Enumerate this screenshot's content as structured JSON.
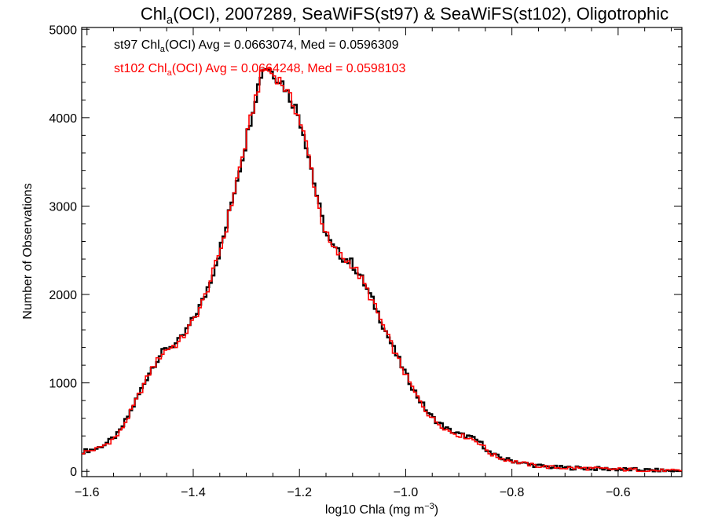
{
  "chart_data": {
    "type": "line",
    "title": {
      "prefix": "Chl",
      "sub": "a",
      "rest": "(OCI), 2007289, SeaWiFS(st97) & SeaWiFS(st102), Oligotrophic"
    },
    "xlabel": {
      "main": "log10 Chla (mg m",
      "sup": "−3",
      "close": ")"
    },
    "ylabel": "Number of Observations",
    "xlim": [
      -1.61,
      -0.48
    ],
    "ylim": [
      -60,
      5020
    ],
    "xticks": [
      {
        "value": -1.6,
        "label": "−1.6"
      },
      {
        "value": -1.4,
        "label": "−1.4"
      },
      {
        "value": -1.2,
        "label": "−1.2"
      },
      {
        "value": -1.0,
        "label": "−1.0"
      },
      {
        "value": -0.8,
        "label": "−0.8"
      },
      {
        "value": -0.6,
        "label": "−0.6"
      }
    ],
    "yticks": [
      {
        "value": 0,
        "label": "0"
      },
      {
        "value": 1000,
        "label": "1000"
      },
      {
        "value": 2000,
        "label": "2000"
      },
      {
        "value": 3000,
        "label": "3000"
      },
      {
        "value": 4000,
        "label": "4000"
      },
      {
        "value": 5000,
        "label": "5000"
      }
    ],
    "x_minor_step": 0.05,
    "y_minor_step": 200,
    "legend": [
      {
        "name": "st97",
        "color": "#000000",
        "prefix": "st97 Chl",
        "sub": "a",
        "rest": "(OCI) Avg = 0.0663074, Med = 0.0596309"
      },
      {
        "name": "st102",
        "color": "#ff0000",
        "prefix": "st102 Chl",
        "sub": "a",
        "rest": "(OCI) Avg = 0.0664248, Med = 0.0598103"
      }
    ],
    "series": [
      {
        "name": "st97",
        "color": "#000000",
        "step": 0.005,
        "x_start": -1.61,
        "profile_x": [
          -1.61,
          -1.58,
          -1.56,
          -1.54,
          -1.52,
          -1.5,
          -1.48,
          -1.46,
          -1.45,
          -1.44,
          -1.43,
          -1.42,
          -1.4,
          -1.38,
          -1.36,
          -1.34,
          -1.32,
          -1.3,
          -1.29,
          -1.28,
          -1.27,
          -1.26,
          -1.25,
          -1.24,
          -1.23,
          -1.22,
          -1.21,
          -1.2,
          -1.19,
          -1.18,
          -1.17,
          -1.16,
          -1.15,
          -1.14,
          -1.12,
          -1.1,
          -1.08,
          -1.06,
          -1.04,
          -1.02,
          -1.0,
          -0.98,
          -0.96,
          -0.95,
          -0.94,
          -0.92,
          -0.9,
          -0.88,
          -0.86,
          -0.84,
          -0.82,
          -0.8,
          -0.78,
          -0.76,
          -0.74,
          -0.72,
          -0.7,
          -0.68,
          -0.66,
          -0.64,
          -0.62,
          -0.6,
          -0.58,
          -0.56,
          -0.54,
          -0.52,
          -0.5,
          -0.48
        ],
        "profile_y": [
          220,
          260,
          330,
          430,
          650,
          900,
          1150,
          1330,
          1390,
          1420,
          1450,
          1520,
          1720,
          1950,
          2300,
          2700,
          3250,
          3750,
          4050,
          4300,
          4550,
          4580,
          4500,
          4450,
          4380,
          4250,
          4150,
          4000,
          3780,
          3500,
          3200,
          2900,
          2700,
          2550,
          2430,
          2350,
          2150,
          1900,
          1620,
          1350,
          1100,
          870,
          680,
          610,
          560,
          470,
          420,
          390,
          330,
          200,
          150,
          120,
          95,
          70,
          55,
          45,
          40,
          38,
          35,
          30,
          26,
          23,
          20,
          16,
          12,
          8,
          5,
          3
        ]
      },
      {
        "name": "st102",
        "color": "#ff0000",
        "step": 0.005,
        "x_start": -1.61,
        "profile_x": [
          -1.61,
          -1.58,
          -1.56,
          -1.54,
          -1.52,
          -1.5,
          -1.48,
          -1.46,
          -1.45,
          -1.44,
          -1.43,
          -1.42,
          -1.4,
          -1.38,
          -1.36,
          -1.34,
          -1.32,
          -1.3,
          -1.29,
          -1.28,
          -1.27,
          -1.26,
          -1.25,
          -1.24,
          -1.23,
          -1.22,
          -1.21,
          -1.2,
          -1.19,
          -1.18,
          -1.17,
          -1.16,
          -1.15,
          -1.14,
          -1.12,
          -1.1,
          -1.08,
          -1.06,
          -1.04,
          -1.02,
          -1.0,
          -0.98,
          -0.96,
          -0.95,
          -0.94,
          -0.92,
          -0.9,
          -0.88,
          -0.86,
          -0.84,
          -0.82,
          -0.8,
          -0.78,
          -0.76,
          -0.74,
          -0.72,
          -0.7,
          -0.68,
          -0.66,
          -0.64,
          -0.62,
          -0.6,
          -0.58,
          -0.56,
          -0.54,
          -0.52,
          -0.5,
          -0.48
        ],
        "profile_y": [
          210,
          255,
          320,
          420,
          640,
          890,
          1140,
          1320,
          1380,
          1410,
          1440,
          1510,
          1700,
          1940,
          2290,
          2690,
          3240,
          3740,
          4040,
          4290,
          4530,
          4560,
          4490,
          4440,
          4370,
          4240,
          4140,
          3990,
          3770,
          3490,
          3190,
          2890,
          2690,
          2540,
          2420,
          2340,
          2140,
          1890,
          1610,
          1340,
          1090,
          860,
          670,
          600,
          550,
          460,
          410,
          380,
          320,
          195,
          145,
          115,
          92,
          68,
          53,
          44,
          39,
          37,
          34,
          29,
          25,
          22,
          19,
          15,
          11,
          7,
          4,
          2
        ]
      }
    ]
  }
}
